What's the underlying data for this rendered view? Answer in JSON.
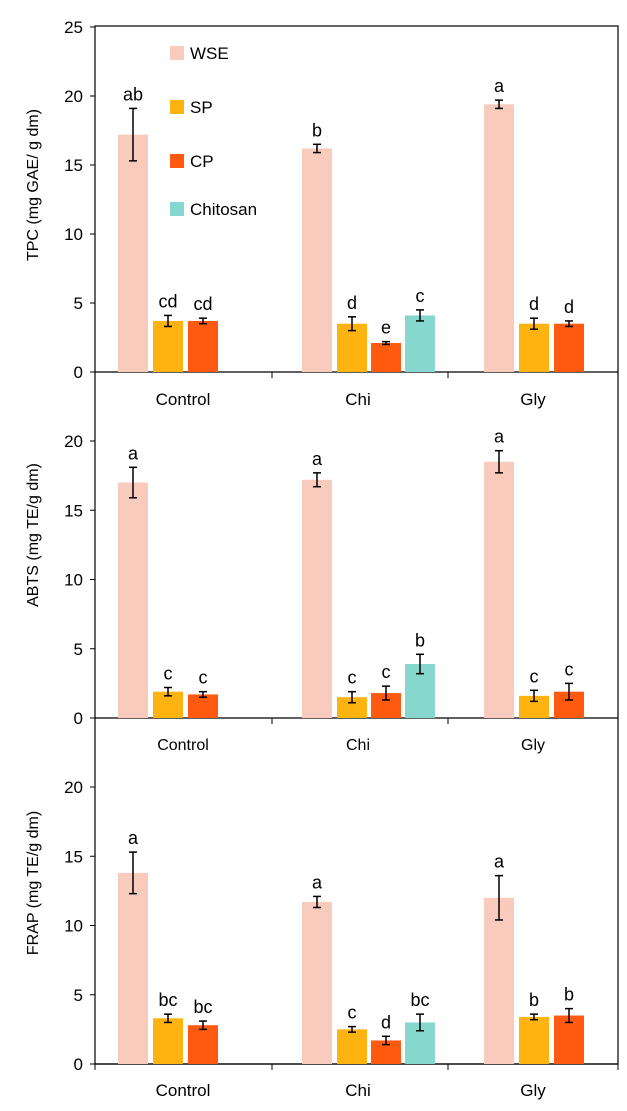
{
  "legend": [
    {
      "label": "WSE",
      "color": "#F8CBBD"
    },
    {
      "label": "SP",
      "color": "#FFB311"
    },
    {
      "label": "CP",
      "color": "#FF5A0F"
    },
    {
      "label": "Chitosan",
      "color": "#86D8CE"
    }
  ],
  "chart_data": [
    {
      "type": "bar",
      "ylabel": "TPC (mg GAE/ g dm)",
      "ylim": [
        0,
        25
      ],
      "yticks": [
        0,
        5,
        10,
        15,
        20,
        25
      ],
      "categories": [
        "Control",
        "Chi",
        "Gly"
      ],
      "legend_position": "top-left",
      "groups": [
        {
          "category": "Control",
          "bars": [
            {
              "series": "WSE",
              "value": 17.2,
              "error": 1.9,
              "label": "ab"
            },
            {
              "series": "SP",
              "value": 3.7,
              "error": 0.4,
              "label": "cd"
            },
            {
              "series": "CP",
              "value": 3.7,
              "error": 0.2,
              "label": "cd"
            }
          ]
        },
        {
          "category": "Chi",
          "bars": [
            {
              "series": "WSE",
              "value": 16.2,
              "error": 0.3,
              "label": "b"
            },
            {
              "series": "SP",
              "value": 3.5,
              "error": 0.5,
              "label": "d"
            },
            {
              "series": "CP",
              "value": 2.1,
              "error": 0.1,
              "label": "e"
            },
            {
              "series": "Chitosan",
              "value": 4.1,
              "error": 0.4,
              "label": "c"
            }
          ]
        },
        {
          "category": "Gly",
          "bars": [
            {
              "series": "WSE",
              "value": 19.4,
              "error": 0.3,
              "label": "a"
            },
            {
              "series": "SP",
              "value": 3.5,
              "error": 0.4,
              "label": "d"
            },
            {
              "series": "CP",
              "value": 3.5,
              "error": 0.2,
              "label": "d"
            }
          ]
        }
      ]
    },
    {
      "type": "bar",
      "ylabel": "ABTS  (mg TE/g dm)",
      "ylim": [
        0,
        20
      ],
      "yticks": [
        0,
        5,
        10,
        15,
        20
      ],
      "categories": [
        "Control",
        "Chi",
        "Gly"
      ],
      "groups": [
        {
          "category": "Control",
          "bars": [
            {
              "series": "WSE",
              "value": 17.0,
              "error": 1.1,
              "label": "a"
            },
            {
              "series": "SP",
              "value": 1.9,
              "error": 0.3,
              "label": "c"
            },
            {
              "series": "CP",
              "value": 1.7,
              "error": 0.2,
              "label": "c"
            }
          ]
        },
        {
          "category": "Chi",
          "bars": [
            {
              "series": "WSE",
              "value": 17.2,
              "error": 0.5,
              "label": "a"
            },
            {
              "series": "SP",
              "value": 1.5,
              "error": 0.4,
              "label": "c"
            },
            {
              "series": "CP",
              "value": 1.8,
              "error": 0.5,
              "label": "c"
            },
            {
              "series": "Chitosan",
              "value": 3.9,
              "error": 0.7,
              "label": "b"
            }
          ]
        },
        {
          "category": "Gly",
          "bars": [
            {
              "series": "WSE",
              "value": 18.5,
              "error": 0.8,
              "label": "a"
            },
            {
              "series": "SP",
              "value": 1.6,
              "error": 0.4,
              "label": "c"
            },
            {
              "series": "CP",
              "value": 1.9,
              "error": 0.6,
              "label": "c"
            }
          ]
        }
      ]
    },
    {
      "type": "bar",
      "ylabel": "FRAP (mg TE/g dm)",
      "ylim": [
        0,
        20
      ],
      "yticks": [
        0,
        5,
        10,
        15,
        20
      ],
      "categories": [
        "Control",
        "Chi",
        "Gly"
      ],
      "groups": [
        {
          "category": "Control",
          "bars": [
            {
              "series": "WSE",
              "value": 13.8,
              "error": 1.5,
              "label": "a"
            },
            {
              "series": "SP",
              "value": 3.3,
              "error": 0.3,
              "label": "bc"
            },
            {
              "series": "CP",
              "value": 2.8,
              "error": 0.3,
              "label": "bc"
            }
          ]
        },
        {
          "category": "Chi",
          "bars": [
            {
              "series": "WSE",
              "value": 11.7,
              "error": 0.4,
              "label": "a"
            },
            {
              "series": "SP",
              "value": 2.5,
              "error": 0.2,
              "label": "c"
            },
            {
              "series": "CP",
              "value": 1.7,
              "error": 0.3,
              "label": "d"
            },
            {
              "series": "Chitosan",
              "value": 3.0,
              "error": 0.6,
              "label": "bc"
            }
          ]
        },
        {
          "category": "Gly",
          "bars": [
            {
              "series": "WSE",
              "value": 12.0,
              "error": 1.6,
              "label": "a"
            },
            {
              "series": "SP",
              "value": 3.4,
              "error": 0.2,
              "label": "b"
            },
            {
              "series": "CP",
              "value": 3.5,
              "error": 0.5,
              "label": "b"
            }
          ]
        }
      ]
    }
  ]
}
